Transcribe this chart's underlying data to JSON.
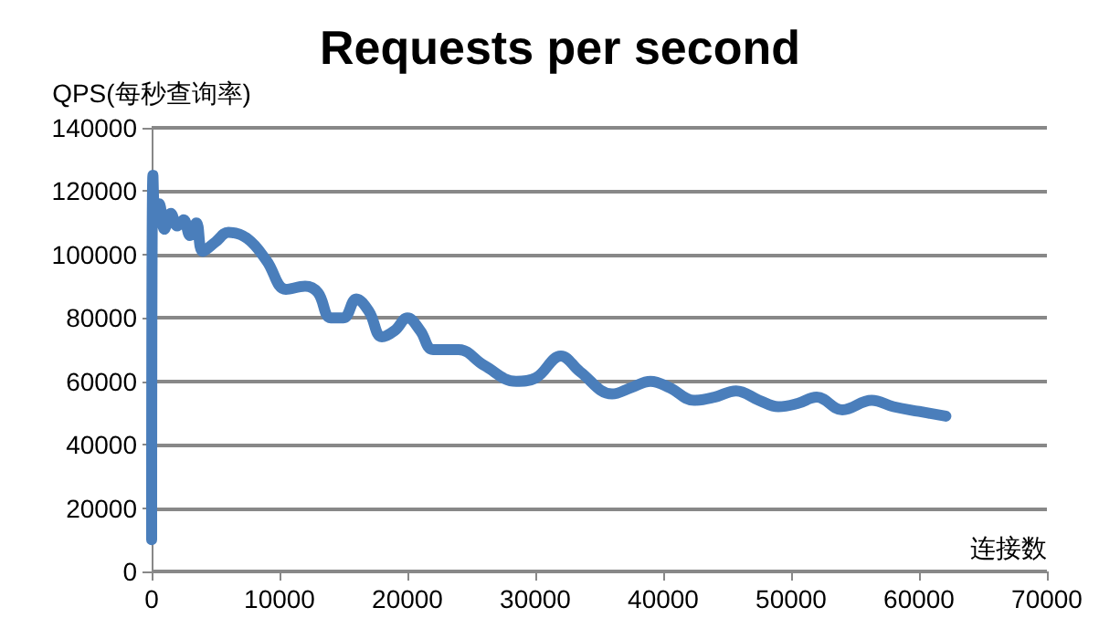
{
  "chart_data": {
    "type": "line",
    "title": "Requests per second",
    "xlabel": "连接数",
    "ylabel": "QPS(每秒查询率)",
    "series": [
      {
        "color": "#4a7ebb",
        "x": [
          0,
          100,
          300,
          600,
          1000,
          1500,
          2000,
          2500,
          3000,
          3500,
          4000,
          5000,
          6000,
          7500,
          9000,
          10500,
          12000,
          13000,
          14000,
          15000,
          16000,
          17000,
          18000,
          19000,
          20000,
          21000,
          22000,
          24000,
          26000,
          28500,
          30000,
          32000,
          33500,
          36000,
          37500,
          39000,
          40500,
          42400,
          44000,
          45700,
          47500,
          49000,
          50500,
          52000,
          54000,
          56300,
          58000,
          60000,
          62100
        ],
        "values": [
          10000,
          125000,
          110000,
          116000,
          108000,
          113000,
          109000,
          111000,
          106000,
          110000,
          101000,
          104000,
          107000,
          105000,
          98000,
          89000,
          90000,
          88000,
          80000,
          80000,
          86000,
          82000,
          74000,
          76000,
          80000,
          76000,
          70000,
          70000,
          65000,
          60000,
          61000,
          68000,
          63000,
          56000,
          58000,
          60000,
          58000,
          54000,
          55000,
          57000,
          54000,
          52000,
          53000,
          55000,
          51000,
          54000,
          52000,
          50500,
          49000
        ]
      }
    ],
    "xlim": [
      0,
      70000
    ],
    "xticks": [
      0,
      10000,
      20000,
      30000,
      40000,
      50000,
      60000,
      70000
    ],
    "ylim": [
      0,
      140000
    ],
    "yticks": [
      0,
      20000,
      40000,
      60000,
      80000,
      100000,
      120000,
      140000
    ],
    "grid": "y",
    "marker": "none",
    "line_style": "solid"
  }
}
